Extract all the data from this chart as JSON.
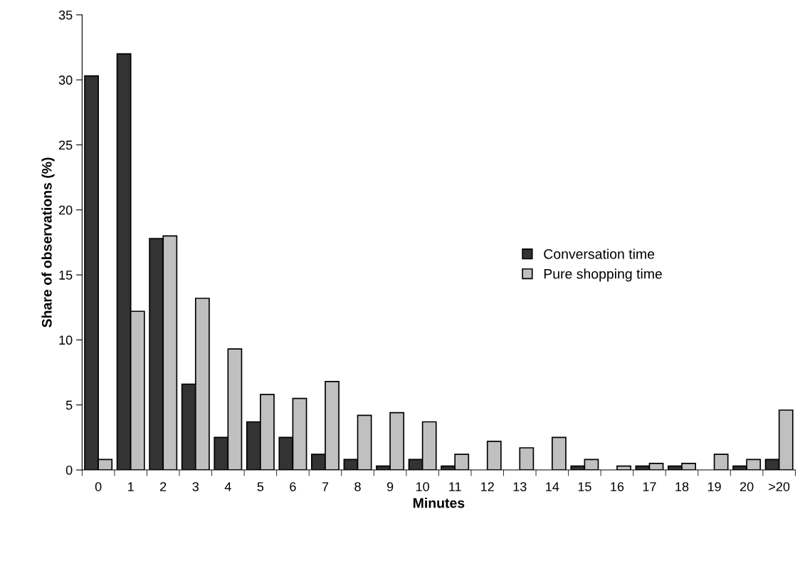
{
  "chart_data": {
    "type": "bar",
    "xlabel": "Minutes",
    "ylabel": "Share of observations (%)",
    "categories": [
      "0",
      "1",
      "2",
      "3",
      "4",
      "5",
      "6",
      "7",
      "8",
      "9",
      "10",
      "11",
      "12",
      "13",
      "14",
      "15",
      "16",
      "17",
      "18",
      "19",
      "20",
      ">20"
    ],
    "series": [
      {
        "name": "Conversation time",
        "color": "#333333",
        "values": [
          30.3,
          32.0,
          17.8,
          6.6,
          2.5,
          3.7,
          2.5,
          1.2,
          0.8,
          0.3,
          0.8,
          0.3,
          0,
          0,
          0,
          0.3,
          0,
          0.3,
          0.3,
          0,
          0.3,
          0.8
        ]
      },
      {
        "name": "Pure shopping time",
        "color": "#c0c0c0",
        "values": [
          0.8,
          12.2,
          18.0,
          13.2,
          9.3,
          5.8,
          5.5,
          6.8,
          4.2,
          4.4,
          3.7,
          1.2,
          2.2,
          1.7,
          2.5,
          0.8,
          0.3,
          0.5,
          0.5,
          1.2,
          0.8,
          4.6
        ]
      }
    ],
    "ylim": [
      0,
      35
    ],
    "yticks": [
      0,
      5,
      10,
      15,
      20,
      25,
      30,
      35
    ],
    "grid": false,
    "legend": "right"
  }
}
